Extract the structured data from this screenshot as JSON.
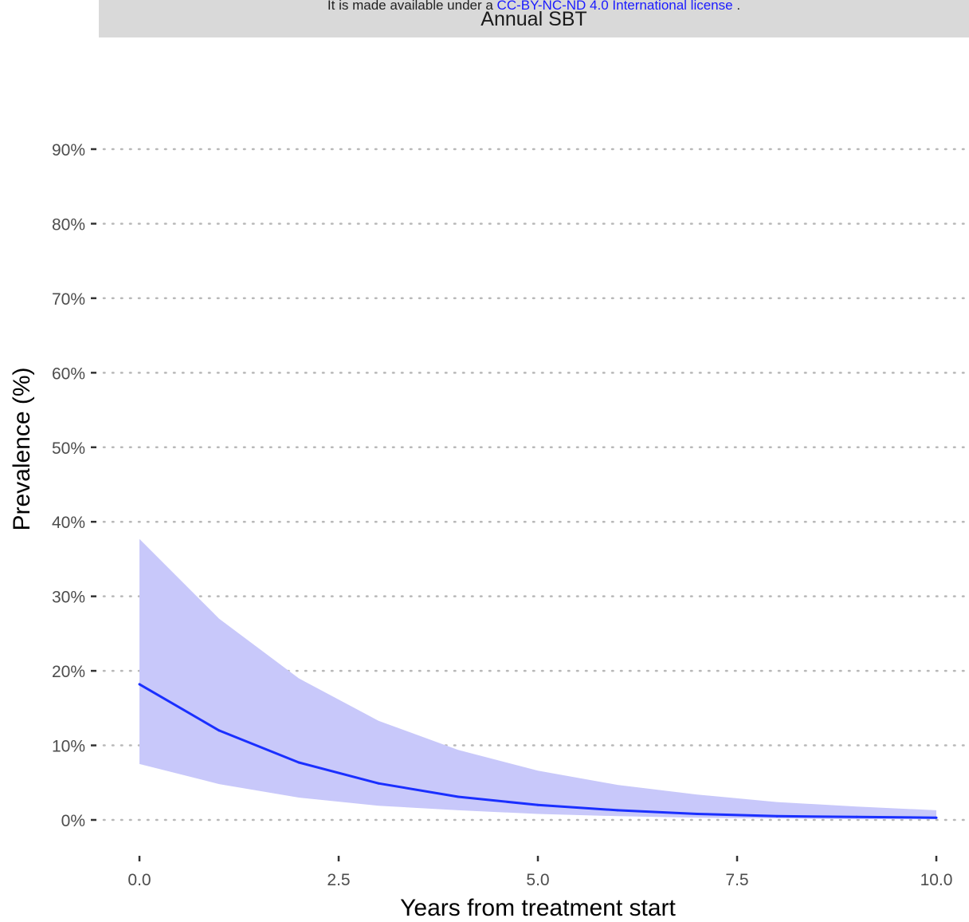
{
  "header": {
    "license_prefix": "It is made available under a ",
    "license_link": "CC-BY-NC-ND 4.0 International license",
    "license_suffix": " .",
    "strip_title": "Annual SBT"
  },
  "colors": {
    "line": "#1a2fff",
    "band": "#c8c8fa",
    "grid": "#b8b8b8",
    "strip": "#d9d9d9"
  },
  "chart_data": {
    "type": "line",
    "title": "Annual SBT",
    "xlabel": "Years from treatment start",
    "ylabel": "Prevalence (%)",
    "xlim": [
      0,
      10
    ],
    "ylim": [
      0,
      90
    ],
    "xticks": [
      0,
      2.5,
      5,
      7.5,
      10
    ],
    "xtick_labels": [
      "0.0",
      "2.5",
      "5.0",
      "7.5",
      "10.0"
    ],
    "yticks": [
      0,
      10,
      20,
      30,
      40,
      50,
      60,
      70,
      80,
      90
    ],
    "ytick_labels": [
      "0%",
      "10%",
      "20%",
      "30%",
      "40%",
      "50%",
      "60%",
      "70%",
      "80%",
      "90%"
    ],
    "grid": "horizontal dotted",
    "x": [
      0,
      1,
      2,
      3,
      4,
      5,
      6,
      7,
      8,
      9,
      10
    ],
    "y": [
      18.2,
      12.0,
      7.7,
      4.9,
      3.1,
      2.0,
      1.3,
      0.8,
      0.5,
      0.4,
      0.3
    ],
    "lower": [
      7.5,
      4.8,
      3.0,
      1.9,
      1.3,
      0.8,
      0.5,
      0.3,
      0.2,
      0.1,
      0.1
    ],
    "upper": [
      37.7,
      27.0,
      19.0,
      13.3,
      9.4,
      6.6,
      4.7,
      3.4,
      2.4,
      1.8,
      1.3
    ]
  }
}
